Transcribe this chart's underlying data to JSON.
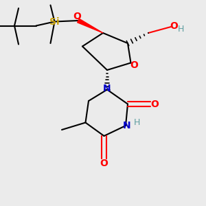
{
  "background_color": "#ebebeb",
  "figsize": [
    3.0,
    3.0
  ],
  "dpi": 100,
  "colors": {
    "O": "#ff0000",
    "N": "#0000cc",
    "H_color": "#5f9ea0",
    "Si": "#c8a000",
    "C": "#000000"
  }
}
